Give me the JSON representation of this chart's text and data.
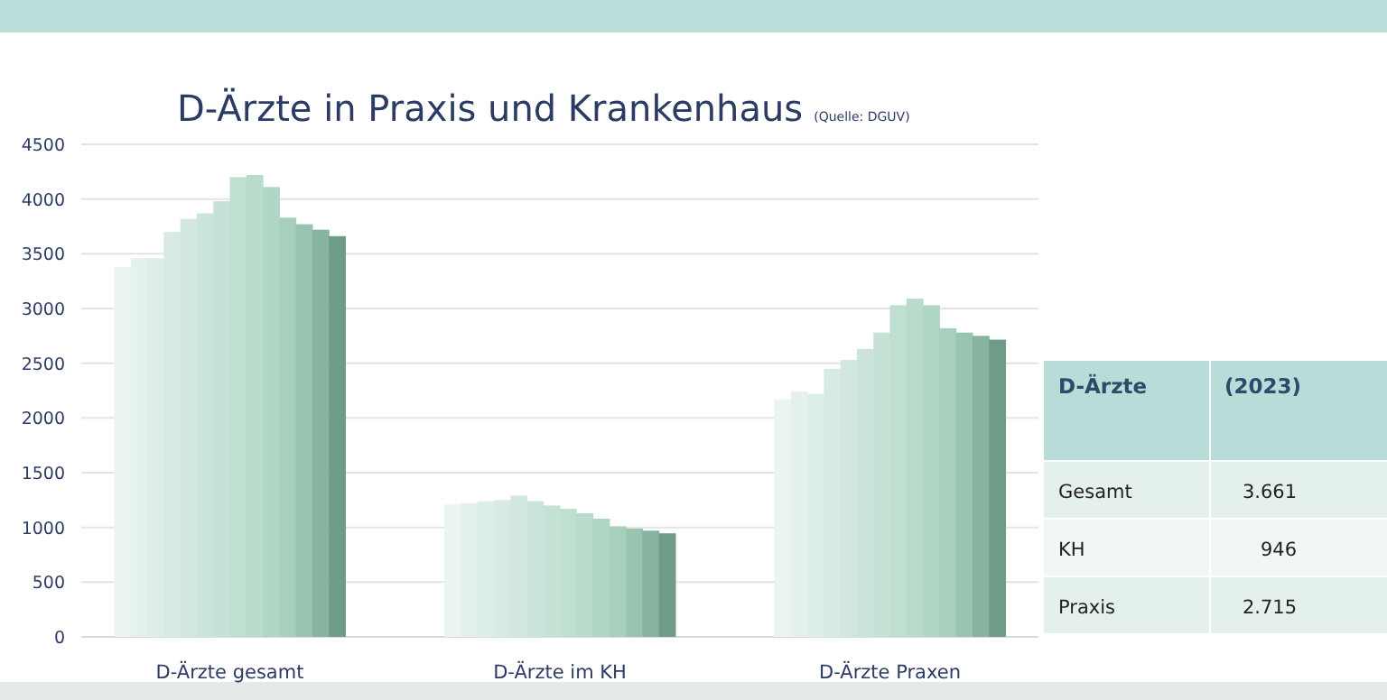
{
  "chart_data": {
    "type": "bar",
    "title": "D-Ärzte in Praxis und Krankenhaus",
    "subtitle": "(Quelle: DGUV)",
    "categories": [
      "D-Ärzte gesamt",
      "D-Ärzte im KH",
      "D-Ärzte Praxen"
    ],
    "series": [
      {
        "color": "#eaf4f0",
        "values": [
          3380,
          1210,
          2170
        ]
      },
      {
        "color": "#e4f1ec",
        "values": [
          3460,
          1220,
          2240
        ]
      },
      {
        "color": "#deeee8",
        "values": [
          3460,
          1240,
          2220
        ]
      },
      {
        "color": "#d8ebe3",
        "values": [
          3700,
          1250,
          2450
        ]
      },
      {
        "color": "#d2e8df",
        "values": [
          3820,
          1290,
          2530
        ]
      },
      {
        "color": "#cce5db",
        "values": [
          3870,
          1240,
          2630
        ]
      },
      {
        "color": "#c5e2d6",
        "values": [
          3980,
          1200,
          2780
        ]
      },
      {
        "color": "#bfdfd1",
        "values": [
          4200,
          1170,
          3030
        ]
      },
      {
        "color": "#b8dbcc",
        "values": [
          4220,
          1130,
          3090
        ]
      },
      {
        "color": "#b0d6c5",
        "values": [
          4110,
          1080,
          3030
        ]
      },
      {
        "color": "#a6cfbc",
        "values": [
          3830,
          1010,
          2820
        ]
      },
      {
        "color": "#98c4b0",
        "values": [
          3770,
          990,
          2780
        ]
      },
      {
        "color": "#86b49f",
        "values": [
          3720,
          970,
          2750
        ]
      },
      {
        "color": "#6e9c88",
        "values": [
          3661,
          946,
          2715
        ]
      }
    ],
    "ylim": [
      0,
      4500
    ],
    "yticks": [
      0,
      500,
      1000,
      1500,
      2000,
      2500,
      3000,
      3500,
      4000,
      4500
    ],
    "grid": "y",
    "annotations": [
      "D-Ärzte",
      "(2023)",
      "Gesamt",
      "3.661",
      "KH",
      "946",
      "Praxis",
      "2.715"
    ]
  }
}
